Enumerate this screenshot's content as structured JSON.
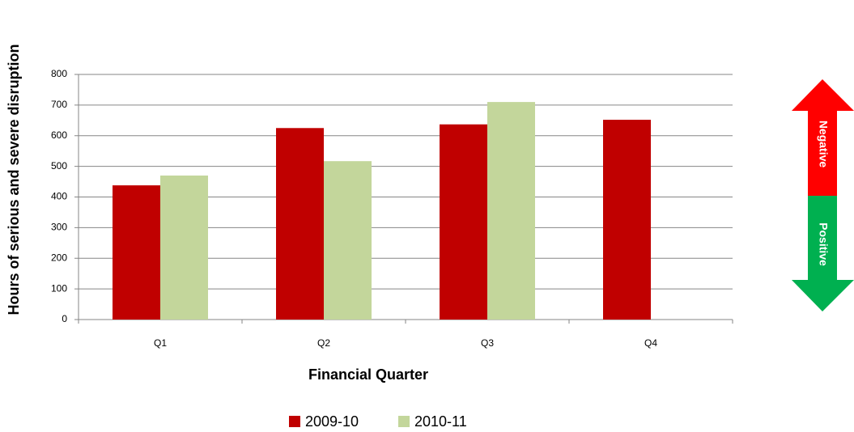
{
  "chart_data": {
    "type": "bar",
    "y_label": "Hours of serious and severe disruption",
    "x_label": "Financial Quarter",
    "categories": [
      "Q1",
      "Q2",
      "Q3",
      "Q4"
    ],
    "series": [
      {
        "name": "2009-10",
        "color": "#c00000",
        "values": [
          438,
          625,
          637,
          652
        ]
      },
      {
        "name": "2010-11",
        "color": "#c3d69b",
        "values": [
          470,
          517,
          710,
          null
        ]
      }
    ],
    "ylim": [
      0,
      800
    ],
    "yticks": [
      0,
      100,
      200,
      300,
      400,
      500,
      600,
      700,
      800
    ],
    "grid": true,
    "legend": "bottom",
    "annotations": [
      "Negative",
      "Positive"
    ]
  }
}
